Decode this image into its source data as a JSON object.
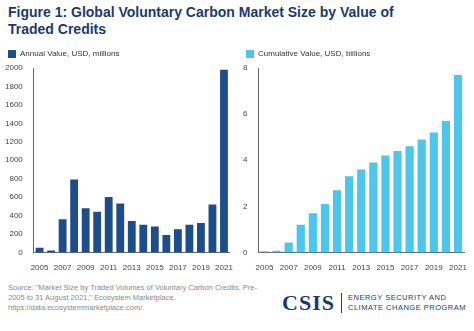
{
  "title": "Figure 1: Global Voluntary Carbon Market Size by Value of Traded Credits",
  "chart_data": [
    {
      "type": "bar",
      "categories": [
        "2005",
        null,
        "2007",
        null,
        "2009",
        null,
        "2011",
        null,
        "2013",
        null,
        "2015",
        null,
        "2017",
        null,
        "2019",
        null,
        "2021"
      ],
      "series": [
        {
          "name": "Annual Value, USD, millions",
          "color": "#1e4d8c",
          "values": [
            50,
            20,
            360,
            790,
            480,
            440,
            600,
            530,
            340,
            300,
            280,
            190,
            250,
            300,
            320,
            520,
            1980
          ]
        }
      ],
      "ylim": [
        0,
        2000
      ],
      "yticks": [
        0,
        200,
        400,
        600,
        800,
        1000,
        1200,
        1400,
        1600,
        1800,
        2000
      ],
      "grid": false,
      "legend": "top-left"
    },
    {
      "type": "bar",
      "categories": [
        "2005",
        null,
        "2007",
        null,
        "2009",
        null,
        "2011",
        null,
        "2013",
        null,
        "2015",
        null,
        "2017",
        null,
        "2019",
        null,
        "2021"
      ],
      "series": [
        {
          "name": "Cumulative Value, USD, billions",
          "color": "#4cc6ec",
          "values": [
            0.05,
            0.07,
            0.43,
            1.2,
            1.7,
            2.1,
            2.7,
            3.3,
            3.6,
            3.9,
            4.2,
            4.4,
            4.6,
            4.9,
            5.2,
            5.7,
            7.7
          ]
        }
      ],
      "ylim": [
        0,
        8
      ],
      "yticks": [
        0,
        2,
        4,
        6,
        8
      ],
      "grid": false,
      "legend": "top-left"
    }
  ],
  "source": "Source: \"Market Size by Traded Volumes of Voluntary Carbon Credits, Pre-2005 to 31 August 2021,\" Ecosystem Marketplace, https://data.ecosystemmarketplace.com/.",
  "logo": {
    "name": "CSIS",
    "program": [
      "ENERGY SECURITY AND",
      "CLIMATE CHANGE PROGRAM"
    ]
  }
}
